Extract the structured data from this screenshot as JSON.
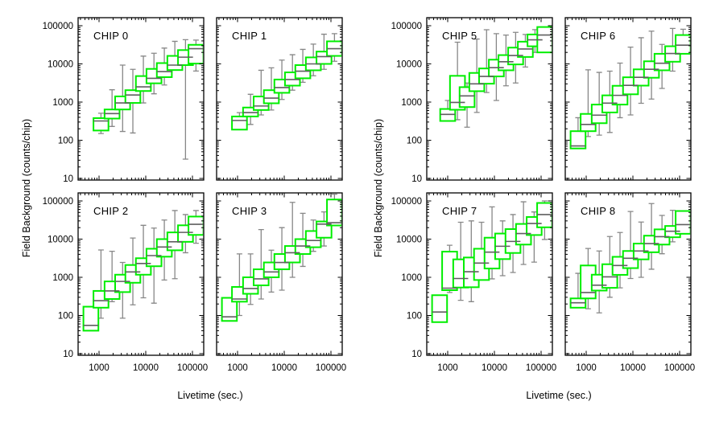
{
  "page": {
    "background": "#ffffff"
  },
  "style": {
    "box_color": "#00ee00",
    "box_fill": "#ffffff",
    "whisker_color": "#878787",
    "median_color": "#5f5f5f",
    "axis_color": "#000000",
    "text_color": "#000000"
  },
  "figures": [
    {
      "id": "left",
      "xlabel": "Livetime (sec.)",
      "ylabel": "Field Background (counts/chip)",
      "x_tick_labels": [
        "1000",
        "10000",
        "100000"
      ],
      "y_tick_labels": [
        "100000",
        "10000",
        "1000",
        "100",
        "10"
      ],
      "panels": [
        {
          "title": "CHIP 0",
          "row": 0,
          "col": 0,
          "chart": 0
        },
        {
          "title": "CHIP 1",
          "row": 0,
          "col": 1,
          "chart": 1
        },
        {
          "title": "CHIP 2",
          "row": 1,
          "col": 0,
          "chart": 2
        },
        {
          "title": "CHIP 3",
          "row": 1,
          "col": 1,
          "chart": 3
        }
      ]
    },
    {
      "id": "right",
      "xlabel": "Livetime (sec.)",
      "ylabel": "Field Background (counts/chip)",
      "x_tick_labels": [
        "1000",
        "10000",
        "100000"
      ],
      "y_tick_labels": [
        "100000",
        "10000",
        "1000",
        "100",
        "10"
      ],
      "panels": [
        {
          "title": "CHIP 5",
          "row": 0,
          "col": 0,
          "chart": 4
        },
        {
          "title": "CHIP 6",
          "row": 0,
          "col": 1,
          "chart": 5
        },
        {
          "title": "CHIP 7",
          "row": 1,
          "col": 0,
          "chart": 6
        },
        {
          "title": "CHIP 8",
          "row": 1,
          "col": 1,
          "chart": 7
        }
      ]
    }
  ],
  "chart_data": [
    {
      "type": "boxplot",
      "title": "CHIP 0",
      "xlabel": "Livetime (sec.)",
      "ylabel": "Field Background (counts/chip)",
      "xscale": "log",
      "yscale": "log",
      "xlim": [
        360,
        175000
      ],
      "ylim": [
        10,
        160000
      ],
      "x": [
        1100,
        1900,
        3200,
        5300,
        8900,
        15000,
        25000,
        42000,
        71000,
        119000
      ],
      "whisker_low": [
        150,
        230,
        170,
        155,
        950,
        1650,
        2800,
        6900,
        32,
        6500
      ],
      "q1": [
        180,
        370,
        640,
        950,
        1950,
        3100,
        4500,
        6900,
        9300,
        10200
      ],
      "median": [
        320,
        500,
        950,
        1530,
        2500,
        4200,
        6300,
        9300,
        15000,
        25000
      ],
      "q3": [
        380,
        640,
        1410,
        2050,
        4800,
        7400,
        10500,
        16200,
        23000,
        31600
      ],
      "whisker_high": [
        510,
        2100,
        9300,
        7200,
        16000,
        19000,
        26000,
        39000,
        43000,
        42000
      ]
    },
    {
      "type": "boxplot",
      "title": "CHIP 1",
      "xlabel": "Livetime (sec.)",
      "ylabel": "Field Background (counts/chip)",
      "xscale": "log",
      "yscale": "log",
      "xlim": [
        360,
        175000
      ],
      "ylim": [
        10,
        160000
      ],
      "x": [
        1100,
        1900,
        3200,
        5300,
        8900,
        15000,
        25000,
        42000,
        71000,
        119000
      ],
      "whisker_low": [
        190,
        260,
        460,
        620,
        1170,
        2050,
        3300,
        4900,
        7200,
        11700
      ],
      "q1": [
        190,
        420,
        620,
        930,
        1750,
        2700,
        4200,
        6800,
        10000,
        16200
      ],
      "median": [
        330,
        530,
        790,
        1270,
        2400,
        3900,
        6450,
        10000,
        15500,
        25000
      ],
      "q3": [
        420,
        720,
        1400,
        2050,
        3900,
        6000,
        9300,
        14800,
        21000,
        39000
      ],
      "whisker_high": [
        530,
        1600,
        6800,
        7900,
        12600,
        17400,
        24000,
        33000,
        60000,
        62000
      ]
    },
    {
      "type": "boxplot",
      "title": "CHIP 2",
      "xlabel": "Livetime (sec.)",
      "ylabel": "Field Background (counts/chip)",
      "xscale": "log",
      "yscale": "log",
      "xlim": [
        360,
        175000
      ],
      "ylim": [
        10,
        160000
      ],
      "x": [
        670,
        1100,
        1900,
        3200,
        5300,
        8900,
        15000,
        25000,
        42000,
        71000,
        119000
      ],
      "whisker_low": [
        40,
        85,
        230,
        85,
        190,
        290,
        210,
        850,
        920,
        4400,
        7800
      ],
      "q1": [
        40,
        160,
        270,
        410,
        720,
        1170,
        1950,
        3470,
        5100,
        8500,
        12900
      ],
      "median": [
        55,
        245,
        440,
        780,
        1380,
        2300,
        3700,
        6200,
        8500,
        15000,
        24500
      ],
      "q3": [
        170,
        440,
        780,
        1170,
        2100,
        3160,
        5600,
        10000,
        15000,
        23000,
        39000
      ],
      "whisker_high": [
        170,
        5200,
        4800,
        2450,
        10700,
        23000,
        19500,
        31600,
        56000,
        44000,
        56000
      ]
    },
    {
      "type": "boxplot",
      "title": "CHIP 3",
      "xlabel": "Livetime (sec.)",
      "ylabel": "Field Background (counts/chip)",
      "xscale": "log",
      "yscale": "log",
      "xlim": [
        360,
        175000
      ],
      "ylim": [
        10,
        160000
      ],
      "x": [
        670,
        1100,
        1900,
        3200,
        5300,
        8900,
        15000,
        25000,
        42000,
        71000,
        119000
      ],
      "whisker_low": [
        72,
        100,
        195,
        270,
        410,
        460,
        1000,
        1930,
        4790,
        6600,
        22800
      ],
      "q1": [
        72,
        230,
        370,
        615,
        1000,
        1620,
        2450,
        4070,
        6130,
        10900,
        22800
      ],
      "median": [
        92,
        270,
        510,
        910,
        1380,
        2450,
        4400,
        6600,
        9200,
        24800,
        26900
      ],
      "q3": [
        290,
        560,
        1000,
        1620,
        2450,
        4070,
        6600,
        10000,
        16300,
        29000,
        109000
      ],
      "whisker_high": [
        290,
        4100,
        4100,
        17800,
        5130,
        20000,
        92000,
        47500,
        31600,
        51600,
        150000
      ]
    },
    {
      "type": "boxplot",
      "title": "CHIP 5",
      "xlabel": "Livetime (sec.)",
      "ylabel": "Field Background (counts/chip)",
      "xscale": "log",
      "yscale": "log",
      "xlim": [
        360,
        175000
      ],
      "ylim": [
        10,
        160000
      ],
      "x": [
        1000,
        1620,
        2600,
        4200,
        6800,
        11000,
        17700,
        28500,
        46000,
        74000,
        120000
      ],
      "whisker_low": [
        320,
        345,
        220,
        535,
        1780,
        1100,
        2670,
        3160,
        8300,
        20000,
        20000
      ],
      "q1": [
        320,
        630,
        740,
        1930,
        3030,
        4700,
        6800,
        9700,
        15200,
        28900,
        20000
      ],
      "median": [
        475,
        980,
        1450,
        3000,
        4700,
        7950,
        11400,
        16600,
        24600,
        42700,
        57000
      ],
      "q3": [
        660,
        4870,
        2460,
        5800,
        7600,
        12900,
        17000,
        26700,
        38200,
        59000,
        92500
      ],
      "whisker_high": [
        1100,
        37000,
        3150,
        44800,
        78500,
        62000,
        57000,
        67000,
        59000,
        79000,
        92500
      ]
    },
    {
      "type": "boxplot",
      "title": "CHIP 6",
      "xlabel": "Livetime (sec.)",
      "ylabel": "Field Background (counts/chip)",
      "xscale": "log",
      "yscale": "log",
      "xlim": [
        360,
        175000
      ],
      "ylim": [
        10,
        160000
      ],
      "x": [
        670,
        1100,
        1900,
        3200,
        5300,
        8900,
        15000,
        25000,
        42000,
        71000,
        119000
      ],
      "whisker_low": [
        61,
        125,
        136,
        160,
        390,
        460,
        930,
        1200,
        2280,
        6470,
        18400
      ],
      "q1": [
        61,
        173,
        280,
        535,
        860,
        1600,
        2700,
        4340,
        6800,
        11400,
        18400
      ],
      "median": [
        71,
        260,
        455,
        940,
        1500,
        2740,
        4460,
        7230,
        10400,
        18700,
        31000
      ],
      "q3": [
        173,
        490,
        860,
        1500,
        2670,
        4460,
        7200,
        11700,
        18400,
        29000,
        57000
      ],
      "whisker_high": [
        390,
        7000,
        6000,
        6470,
        10500,
        27500,
        48500,
        72000,
        32400,
        85000,
        81000
      ]
    },
    {
      "type": "boxplot",
      "title": "CHIP 7",
      "xlabel": "Livetime (sec.)",
      "ylabel": "Field Background (counts/chip)",
      "xscale": "log",
      "yscale": "log",
      "xlim": [
        360,
        175000
      ],
      "ylim": [
        10,
        160000
      ],
      "x": [
        670,
        1100,
        1900,
        3200,
        5300,
        8900,
        15000,
        25000,
        42000,
        71000,
        119000
      ],
      "whisker_low": [
        67,
        400,
        250,
        230,
        1570,
        910,
        1100,
        1340,
        2170,
        2500,
        9800
      ],
      "q1": [
        67,
        460,
        540,
        550,
        850,
        1700,
        3000,
        4340,
        7200,
        12800,
        20400
      ],
      "median": [
        123,
        520,
        930,
        1400,
        2360,
        4560,
        6500,
        8700,
        14000,
        25600,
        44000
      ],
      "q3": [
        340,
        4700,
        2950,
        3300,
        5600,
        10900,
        14000,
        18300,
        25000,
        38000,
        88500
      ],
      "whisker_high": [
        340,
        6900,
        27700,
        30000,
        27700,
        70000,
        30000,
        44000,
        95000,
        51500,
        100000
      ]
    },
    {
      "type": "boxplot",
      "title": "CHIP 8",
      "xlabel": "Livetime (sec.)",
      "ylabel": "Field Background (counts/chip)",
      "xscale": "log",
      "yscale": "log",
      "xlim": [
        360,
        175000
      ],
      "ylim": [
        10,
        160000
      ],
      "x": [
        670,
        1100,
        1900,
        3200,
        5300,
        8900,
        15000,
        25000,
        42000,
        71000,
        119000
      ],
      "whisker_low": [
        160,
        150,
        117,
        300,
        530,
        930,
        1000,
        1630,
        4140,
        8500,
        13800
      ],
      "q1": [
        160,
        280,
        450,
        530,
        1160,
        1740,
        2950,
        4530,
        7200,
        11200,
        13800
      ],
      "median": [
        215,
        400,
        620,
        1030,
        2040,
        3150,
        4890,
        7640,
        11600,
        16100,
        24000
      ],
      "q3": [
        280,
        2040,
        1170,
        2200,
        3440,
        4890,
        7640,
        12300,
        18000,
        22100,
        54500
      ],
      "whisker_high": [
        1270,
        5700,
        4900,
        11700,
        14900,
        53000,
        28000,
        85500,
        41800,
        57000,
        54500
      ]
    }
  ]
}
